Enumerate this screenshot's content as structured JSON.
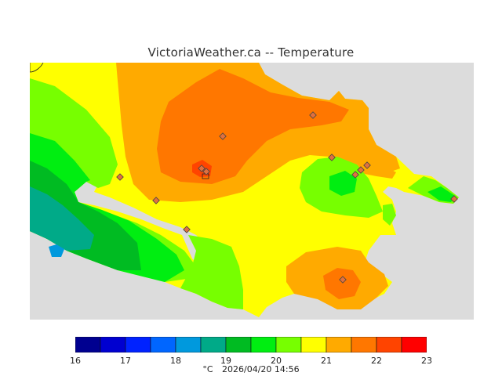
{
  "title": "VictoriaWeather.ca -- Temperature",
  "legend": {
    "ticks": [
      "16",
      "17",
      "18",
      "19",
      "20",
      "21",
      "22",
      "23"
    ],
    "bins": [
      {
        "from": 16.0,
        "to": 16.5,
        "color": "#000090"
      },
      {
        "from": 16.5,
        "to": 17.0,
        "color": "#0000d0"
      },
      {
        "from": 17.0,
        "to": 17.5,
        "color": "#0022ff"
      },
      {
        "from": 17.5,
        "to": 18.0,
        "color": "#0066ff"
      },
      {
        "from": 18.0,
        "to": 18.5,
        "color": "#0099dd"
      },
      {
        "from": 18.5,
        "to": 19.0,
        "color": "#00aa88"
      },
      {
        "from": 19.0,
        "to": 19.5,
        "color": "#00bb22"
      },
      {
        "from": 19.5,
        "to": 20.0,
        "color": "#00ee11"
      },
      {
        "from": 20.0,
        "to": 20.5,
        "color": "#77ff00"
      },
      {
        "from": 20.5,
        "to": 21.0,
        "color": "#ffff00"
      },
      {
        "from": 21.0,
        "to": 21.5,
        "color": "#ffaa00"
      },
      {
        "from": 21.5,
        "to": 22.0,
        "color": "#ff7700"
      },
      {
        "from": 22.0,
        "to": 22.5,
        "color": "#ff4400"
      },
      {
        "from": 22.5,
        "to": 23.0,
        "color": "#ff0000"
      }
    ]
  },
  "units": "°C",
  "timestamp": "2026/04/20 14:56",
  "colors": {
    "water": "#dcdcdc",
    "yellow": "#ffff00",
    "light_orange": "#ffaa00",
    "orange": "#ff7700",
    "red_orange": "#ff4400",
    "green": "#00ee11",
    "light_green": "#77ff00",
    "dark_green": "#00bb22",
    "teal": "#00aa88",
    "blue": "#0099dd",
    "station": "#e07040"
  }
}
